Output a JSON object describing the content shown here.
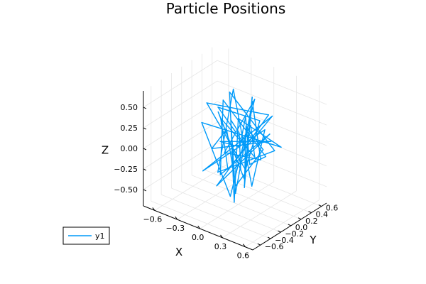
{
  "chart_data": {
    "type": "line3d",
    "title": "Particle Positions",
    "xlabel": "X",
    "ylabel": "Y",
    "zlabel": "Z",
    "xlim": [
      -0.75,
      0.7
    ],
    "ylim": [
      -0.75,
      0.7
    ],
    "zlim": [
      -0.7,
      0.7
    ],
    "x_ticks": [
      "−0.6",
      "−0.3",
      "0.0",
      "0.3",
      "0.6"
    ],
    "x_tick_values": [
      -0.6,
      -0.3,
      0.0,
      0.3,
      0.6
    ],
    "y_ticks": [
      "−0.6",
      "−0.4",
      "−0.2",
      "0.0",
      "0.2",
      "0.4",
      "0.6"
    ],
    "y_tick_values": [
      -0.6,
      -0.4,
      -0.2,
      0.0,
      0.2,
      0.4,
      0.6
    ],
    "z_ticks": [
      "−0.50",
      "−0.25",
      "0.00",
      "0.25",
      "0.50"
    ],
    "z_tick_values": [
      -0.5,
      -0.25,
      0.0,
      0.25,
      0.5
    ],
    "grid": true,
    "legend_position": "bottom-left",
    "series": [
      {
        "name": "y1",
        "color": "#009af9",
        "x": [
          0.0,
          0.3,
          -0.05,
          -0.3,
          0.1,
          0.25,
          -0.4,
          0.05,
          0.35,
          -0.2,
          0.0,
          0.45,
          -0.35,
          0.15,
          -0.1,
          0.3,
          -0.45,
          0.2,
          0.05,
          -0.25,
          0.4,
          -0.15,
          0.1,
          -0.3,
          0.25,
          0.0,
          -0.4,
          0.35,
          -0.05,
          0.15,
          -0.2,
          0.5,
          -0.1,
          0.05,
          -0.35,
          0.3,
          0.1,
          -0.25,
          0.2,
          -0.05,
          0.4,
          -0.3,
          0.0,
          0.25,
          -0.15,
          0.1,
          -0.45,
          0.3,
          0.05,
          -0.2,
          0.15
        ],
        "y": [
          0.0,
          -0.2,
          0.4,
          0.1,
          -0.35,
          0.3,
          -0.1,
          0.45,
          -0.25,
          0.2,
          -0.4,
          0.05,
          0.35,
          -0.3,
          0.15,
          0.4,
          -0.05,
          -0.45,
          0.25,
          0.1,
          -0.15,
          0.5,
          -0.2,
          0.3,
          -0.35,
          0.05,
          0.2,
          -0.4,
          0.35,
          -0.1,
          0.45,
          -0.25,
          0.1,
          -0.3,
          0.0,
          0.2,
          -0.5,
          0.4,
          -0.15,
          0.3,
          -0.05,
          0.15,
          -0.35,
          0.25,
          -0.2,
          0.45,
          0.05,
          -0.3,
          0.35,
          -0.1,
          0.0
        ],
        "z": [
          0.0,
          0.45,
          -0.3,
          0.2,
          -0.1,
          0.35,
          -0.4,
          0.05,
          -0.25,
          0.55,
          -0.15,
          0.1,
          0.4,
          -0.5,
          0.25,
          -0.05,
          0.15,
          -0.35,
          0.5,
          -0.2,
          0.05,
          0.3,
          -0.45,
          0.1,
          0.4,
          -0.3,
          0.2,
          -0.1,
          0.45,
          -0.4,
          0.0,
          0.25,
          -0.55,
          0.35,
          -0.15,
          0.1,
          0.3,
          -0.25,
          0.5,
          -0.35,
          0.05,
          0.4,
          -0.2,
          0.15,
          -0.45,
          0.25,
          0.35,
          -0.05,
          0.2,
          0.45,
          0.0
        ]
      }
    ]
  }
}
